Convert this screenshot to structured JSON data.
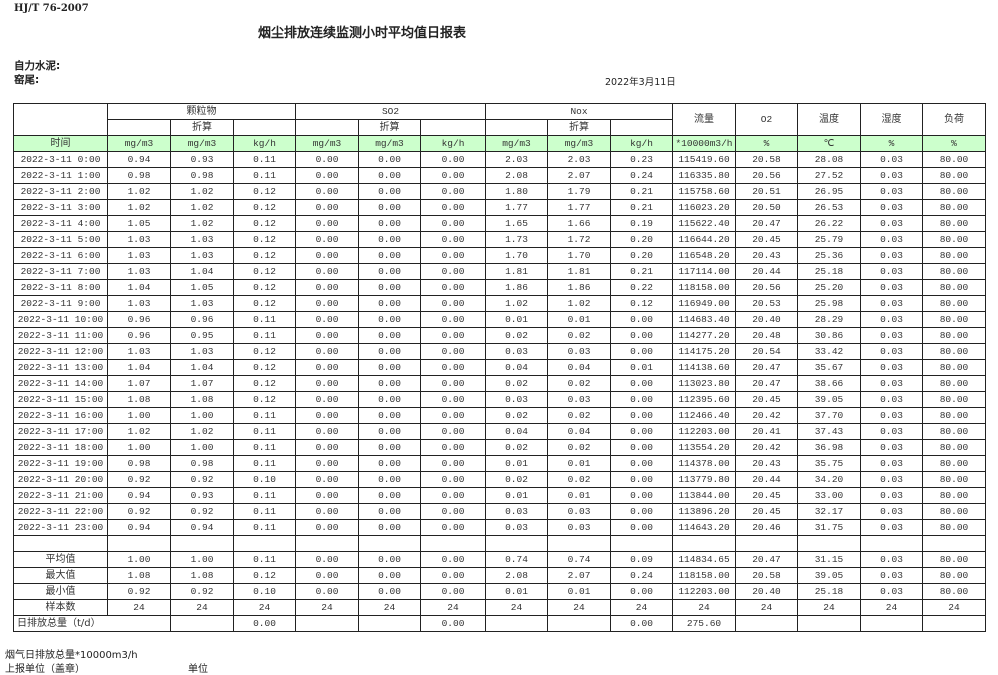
{
  "standard": "HJ/T  76-2007",
  "title": "烟尘排放连续监测小时平均值日报表",
  "company_label": "自力水泥:",
  "kiln_label": "窑尾:",
  "report_date": "2022年3月11日",
  "header": {
    "particulate": "颗粒物",
    "so2": "SO2",
    "nox": "Nox",
    "converted": "折算",
    "flow": "流量",
    "o2": "O2",
    "temperature": "温度",
    "humidity": "湿度",
    "load": "负荷",
    "time": "时间",
    "units": [
      "mg/m3",
      "mg/m3",
      "kg/h",
      "mg/m3",
      "mg/m3",
      "kg/h",
      "mg/m3",
      "mg/m3",
      "kg/h",
      "*10000m3/h",
      "%",
      "℃",
      "%",
      "%"
    ]
  },
  "rows": [
    [
      "2022-3-11 0:00",
      "0.94",
      "0.93",
      "0.11",
      "0.00",
      "0.00",
      "0.00",
      "2.03",
      "2.03",
      "0.23",
      "115419.60",
      "20.58",
      "28.08",
      "0.03",
      "80.00"
    ],
    [
      "2022-3-11 1:00",
      "0.98",
      "0.98",
      "0.11",
      "0.00",
      "0.00",
      "0.00",
      "2.08",
      "2.07",
      "0.24",
      "116335.80",
      "20.56",
      "27.52",
      "0.03",
      "80.00"
    ],
    [
      "2022-3-11 2:00",
      "1.02",
      "1.02",
      "0.12",
      "0.00",
      "0.00",
      "0.00",
      "1.80",
      "1.79",
      "0.21",
      "115758.60",
      "20.51",
      "26.95",
      "0.03",
      "80.00"
    ],
    [
      "2022-3-11 3:00",
      "1.02",
      "1.02",
      "0.12",
      "0.00",
      "0.00",
      "0.00",
      "1.77",
      "1.77",
      "0.21",
      "116023.20",
      "20.50",
      "26.53",
      "0.03",
      "80.00"
    ],
    [
      "2022-3-11 4:00",
      "1.05",
      "1.02",
      "0.12",
      "0.00",
      "0.00",
      "0.00",
      "1.65",
      "1.66",
      "0.19",
      "115622.40",
      "20.47",
      "26.22",
      "0.03",
      "80.00"
    ],
    [
      "2022-3-11 5:00",
      "1.03",
      "1.03",
      "0.12",
      "0.00",
      "0.00",
      "0.00",
      "1.73",
      "1.72",
      "0.20",
      "116644.20",
      "20.45",
      "25.79",
      "0.03",
      "80.00"
    ],
    [
      "2022-3-11 6:00",
      "1.03",
      "1.03",
      "0.12",
      "0.00",
      "0.00",
      "0.00",
      "1.70",
      "1.70",
      "0.20",
      "116548.20",
      "20.43",
      "25.36",
      "0.03",
      "80.00"
    ],
    [
      "2022-3-11 7:00",
      "1.03",
      "1.04",
      "0.12",
      "0.00",
      "0.00",
      "0.00",
      "1.81",
      "1.81",
      "0.21",
      "117114.00",
      "20.44",
      "25.18",
      "0.03",
      "80.00"
    ],
    [
      "2022-3-11 8:00",
      "1.04",
      "1.05",
      "0.12",
      "0.00",
      "0.00",
      "0.00",
      "1.86",
      "1.86",
      "0.22",
      "118158.00",
      "20.56",
      "25.20",
      "0.03",
      "80.00"
    ],
    [
      "2022-3-11 9:00",
      "1.03",
      "1.03",
      "0.12",
      "0.00",
      "0.00",
      "0.00",
      "1.02",
      "1.02",
      "0.12",
      "116949.00",
      "20.53",
      "25.98",
      "0.03",
      "80.00"
    ],
    [
      "2022-3-11 10:00",
      "0.96",
      "0.96",
      "0.11",
      "0.00",
      "0.00",
      "0.00",
      "0.01",
      "0.01",
      "0.00",
      "114683.40",
      "20.40",
      "28.29",
      "0.03",
      "80.00"
    ],
    [
      "2022-3-11 11:00",
      "0.96",
      "0.95",
      "0.11",
      "0.00",
      "0.00",
      "0.00",
      "0.02",
      "0.02",
      "0.00",
      "114277.20",
      "20.48",
      "30.86",
      "0.03",
      "80.00"
    ],
    [
      "2022-3-11 12:00",
      "1.03",
      "1.03",
      "0.12",
      "0.00",
      "0.00",
      "0.00",
      "0.03",
      "0.03",
      "0.00",
      "114175.20",
      "20.54",
      "33.42",
      "0.03",
      "80.00"
    ],
    [
      "2022-3-11 13:00",
      "1.04",
      "1.04",
      "0.12",
      "0.00",
      "0.00",
      "0.00",
      "0.04",
      "0.04",
      "0.01",
      "114138.60",
      "20.47",
      "35.67",
      "0.03",
      "80.00"
    ],
    [
      "2022-3-11 14:00",
      "1.07",
      "1.07",
      "0.12",
      "0.00",
      "0.00",
      "0.00",
      "0.02",
      "0.02",
      "0.00",
      "113023.80",
      "20.47",
      "38.66",
      "0.03",
      "80.00"
    ],
    [
      "2022-3-11 15:00",
      "1.08",
      "1.08",
      "0.12",
      "0.00",
      "0.00",
      "0.00",
      "0.03",
      "0.03",
      "0.00",
      "112395.60",
      "20.45",
      "39.05",
      "0.03",
      "80.00"
    ],
    [
      "2022-3-11 16:00",
      "1.00",
      "1.00",
      "0.11",
      "0.00",
      "0.00",
      "0.00",
      "0.02",
      "0.02",
      "0.00",
      "112466.40",
      "20.42",
      "37.70",
      "0.03",
      "80.00"
    ],
    [
      "2022-3-11 17:00",
      "1.02",
      "1.02",
      "0.11",
      "0.00",
      "0.00",
      "0.00",
      "0.04",
      "0.04",
      "0.00",
      "112203.00",
      "20.41",
      "37.43",
      "0.03",
      "80.00"
    ],
    [
      "2022-3-11 18:00",
      "1.00",
      "1.00",
      "0.11",
      "0.00",
      "0.00",
      "0.00",
      "0.02",
      "0.02",
      "0.00",
      "113554.20",
      "20.42",
      "36.98",
      "0.03",
      "80.00"
    ],
    [
      "2022-3-11 19:00",
      "0.98",
      "0.98",
      "0.11",
      "0.00",
      "0.00",
      "0.00",
      "0.01",
      "0.01",
      "0.00",
      "114378.00",
      "20.43",
      "35.75",
      "0.03",
      "80.00"
    ],
    [
      "2022-3-11 20:00",
      "0.92",
      "0.92",
      "0.10",
      "0.00",
      "0.00",
      "0.00",
      "0.02",
      "0.02",
      "0.00",
      "113779.80",
      "20.44",
      "34.20",
      "0.03",
      "80.00"
    ],
    [
      "2022-3-11 21:00",
      "0.94",
      "0.93",
      "0.11",
      "0.00",
      "0.00",
      "0.00",
      "0.01",
      "0.01",
      "0.00",
      "113844.00",
      "20.45",
      "33.00",
      "0.03",
      "80.00"
    ],
    [
      "2022-3-11 22:00",
      "0.92",
      "0.92",
      "0.11",
      "0.00",
      "0.00",
      "0.00",
      "0.03",
      "0.03",
      "0.00",
      "113896.20",
      "20.45",
      "32.17",
      "0.03",
      "80.00"
    ],
    [
      "2022-3-11 23:00",
      "0.94",
      "0.94",
      "0.11",
      "0.00",
      "0.00",
      "0.00",
      "0.03",
      "0.03",
      "0.00",
      "114643.20",
      "20.46",
      "31.75",
      "0.03",
      "80.00"
    ]
  ],
  "summary": [
    [
      "平均值",
      "1.00",
      "1.00",
      "0.11",
      "0.00",
      "0.00",
      "0.00",
      "0.74",
      "0.74",
      "0.09",
      "114834.65",
      "20.47",
      "31.15",
      "0.03",
      "80.00"
    ],
    [
      "最大值",
      "1.08",
      "1.08",
      "0.12",
      "0.00",
      "0.00",
      "0.00",
      "2.08",
      "2.07",
      "0.24",
      "118158.00",
      "20.58",
      "39.05",
      "0.03",
      "80.00"
    ],
    [
      "最小值",
      "0.92",
      "0.92",
      "0.10",
      "0.00",
      "0.00",
      "0.00",
      "0.01",
      "0.01",
      "0.00",
      "112203.00",
      "20.40",
      "25.18",
      "0.03",
      "80.00"
    ],
    [
      "样本数",
      "24",
      "24",
      "24",
      "24",
      "24",
      "24",
      "24",
      "24",
      "24",
      "24",
      "24",
      "24",
      "24",
      "24"
    ]
  ],
  "daily_total": {
    "label": "日排放总量（t/d）",
    "values": [
      "",
      "0.00",
      "",
      "",
      "0.00",
      "",
      "",
      "0.00",
      "275.60",
      "",
      "",
      "",
      ""
    ]
  },
  "footer": {
    "flue_gas_total": "烟气日排放总量*10000m3/h",
    "reporting_unit": "上报单位（盖章）",
    "unit": "单位"
  },
  "colors": {
    "units_row_bg": "#ccffcc"
  }
}
